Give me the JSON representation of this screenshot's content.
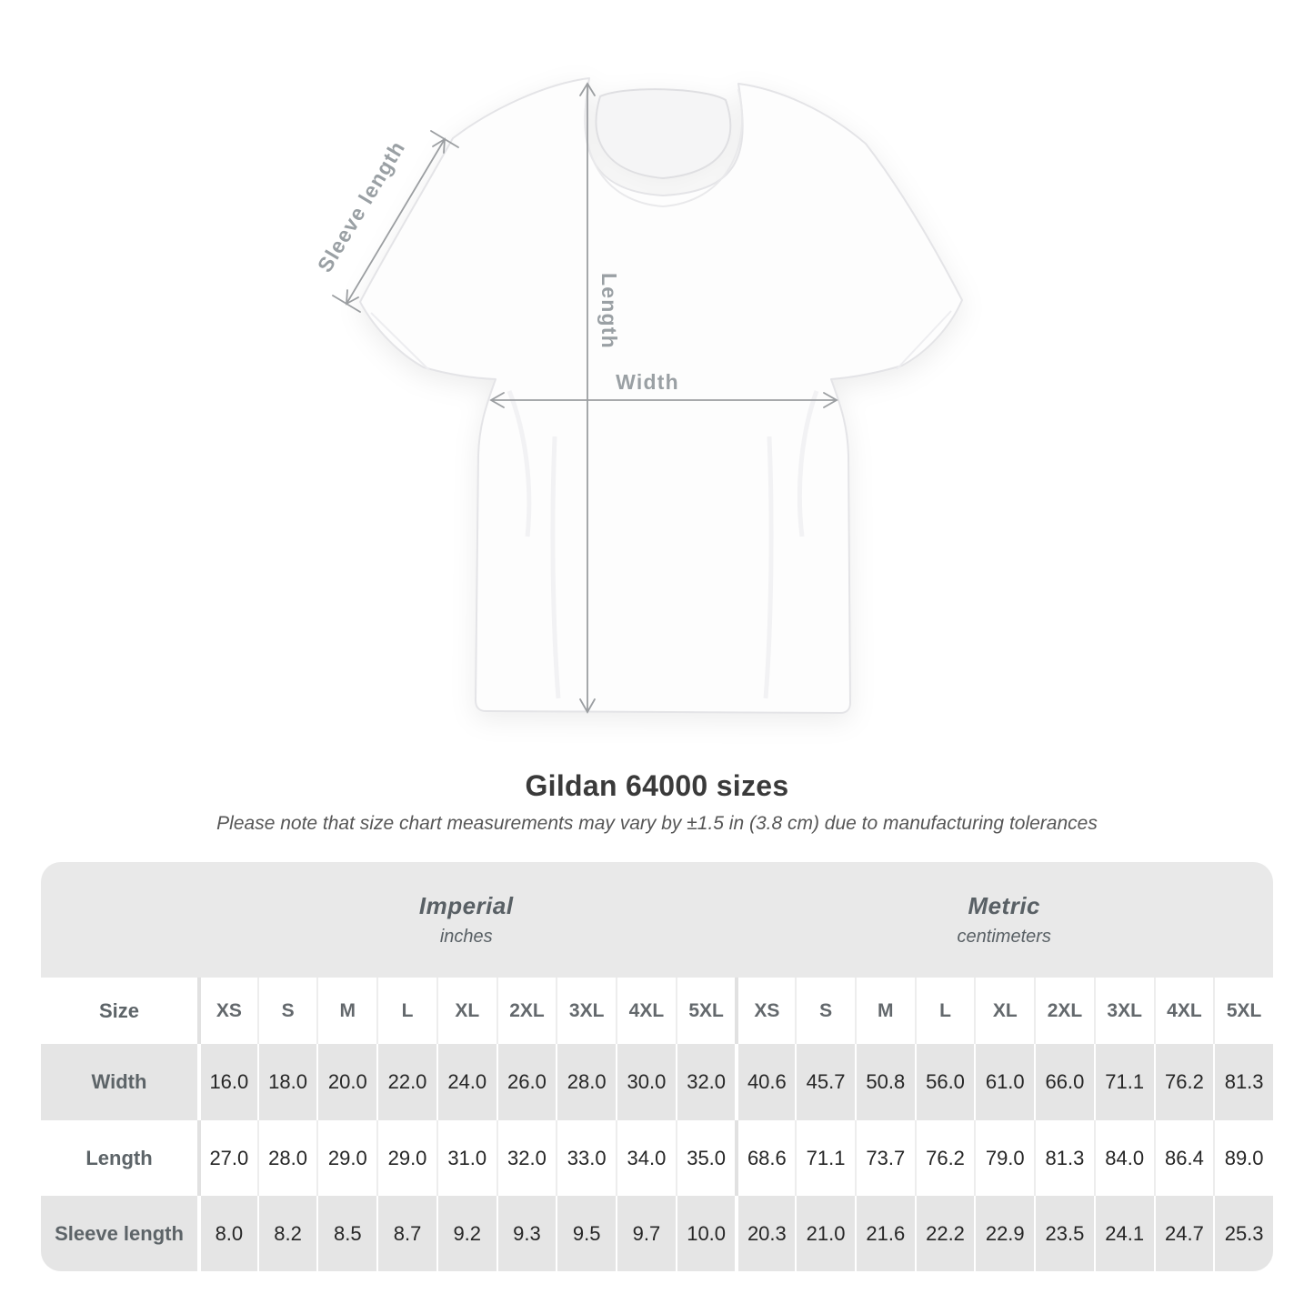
{
  "figure": {
    "sleeve_label": "Sleeve length",
    "length_label": "Length",
    "width_label": "Width"
  },
  "header": {
    "title": "Gildan 64000 sizes",
    "note": "Please note that size chart measurements may vary by ±1.5 in (3.8 cm) due to manufacturing tolerances"
  },
  "table": {
    "size_label": "Size",
    "unit_groups": [
      {
        "name": "Imperial",
        "unit": "inches"
      },
      {
        "name": "Metric",
        "unit": "centimeters"
      }
    ],
    "sizes": [
      "XS",
      "S",
      "M",
      "L",
      "XL",
      "2XL",
      "3XL",
      "4XL",
      "5XL"
    ],
    "rows": [
      {
        "label": "Width",
        "imperial": [
          "16.0",
          "18.0",
          "20.0",
          "22.0",
          "24.0",
          "26.0",
          "28.0",
          "30.0",
          "32.0"
        ],
        "metric": [
          "40.6",
          "45.7",
          "50.8",
          "56.0",
          "61.0",
          "66.0",
          "71.1",
          "76.2",
          "81.3"
        ]
      },
      {
        "label": "Length",
        "imperial": [
          "27.0",
          "28.0",
          "29.0",
          "29.0",
          "31.0",
          "32.0",
          "33.0",
          "34.0",
          "35.0"
        ],
        "metric": [
          "68.6",
          "71.1",
          "73.7",
          "76.2",
          "79.0",
          "81.3",
          "84.0",
          "86.4",
          "89.0"
        ]
      },
      {
        "label": "Sleeve length",
        "imperial": [
          "8.0",
          "8.2",
          "8.5",
          "8.7",
          "9.2",
          "9.3",
          "9.5",
          "9.7",
          "10.0"
        ],
        "metric": [
          "20.3",
          "21.0",
          "21.6",
          "22.2",
          "22.9",
          "23.5",
          "24.1",
          "24.7",
          "25.3"
        ]
      }
    ]
  },
  "colors": {
    "dimension_gray": "#9aa0a4",
    "title_text": "#3a3a3a",
    "note_text": "#565656",
    "header_band_bg": "#e9e9e9",
    "gray_row_bg": "#e5e5e5",
    "label_text": "#5d6468",
    "value_text": "#262626"
  },
  "chart_data": {
    "type": "table",
    "title": "Gildan 64000 sizes",
    "subtitle": "Please note that size chart measurements may vary by ±1.5 in (3.8 cm) due to manufacturing tolerances",
    "column_groups": [
      "Imperial (inches)",
      "Metric (centimeters)"
    ],
    "columns": [
      "XS",
      "S",
      "M",
      "L",
      "XL",
      "2XL",
      "3XL",
      "4XL",
      "5XL"
    ],
    "rows": [
      {
        "label": "Width",
        "imperial": [
          16.0,
          18.0,
          20.0,
          22.0,
          24.0,
          26.0,
          28.0,
          30.0,
          32.0
        ],
        "metric": [
          40.6,
          45.7,
          50.8,
          56.0,
          61.0,
          66.0,
          71.1,
          76.2,
          81.3
        ]
      },
      {
        "label": "Length",
        "imperial": [
          27.0,
          28.0,
          29.0,
          29.0,
          31.0,
          32.0,
          33.0,
          34.0,
          35.0
        ],
        "metric": [
          68.6,
          71.1,
          73.7,
          76.2,
          79.0,
          81.3,
          84.0,
          86.4,
          89.0
        ]
      },
      {
        "label": "Sleeve length",
        "imperial": [
          8.0,
          8.2,
          8.5,
          8.7,
          9.2,
          9.3,
          9.5,
          9.7,
          10.0
        ],
        "metric": [
          20.3,
          21.0,
          21.6,
          22.2,
          22.9,
          23.5,
          24.1,
          24.7,
          25.3
        ]
      }
    ]
  }
}
